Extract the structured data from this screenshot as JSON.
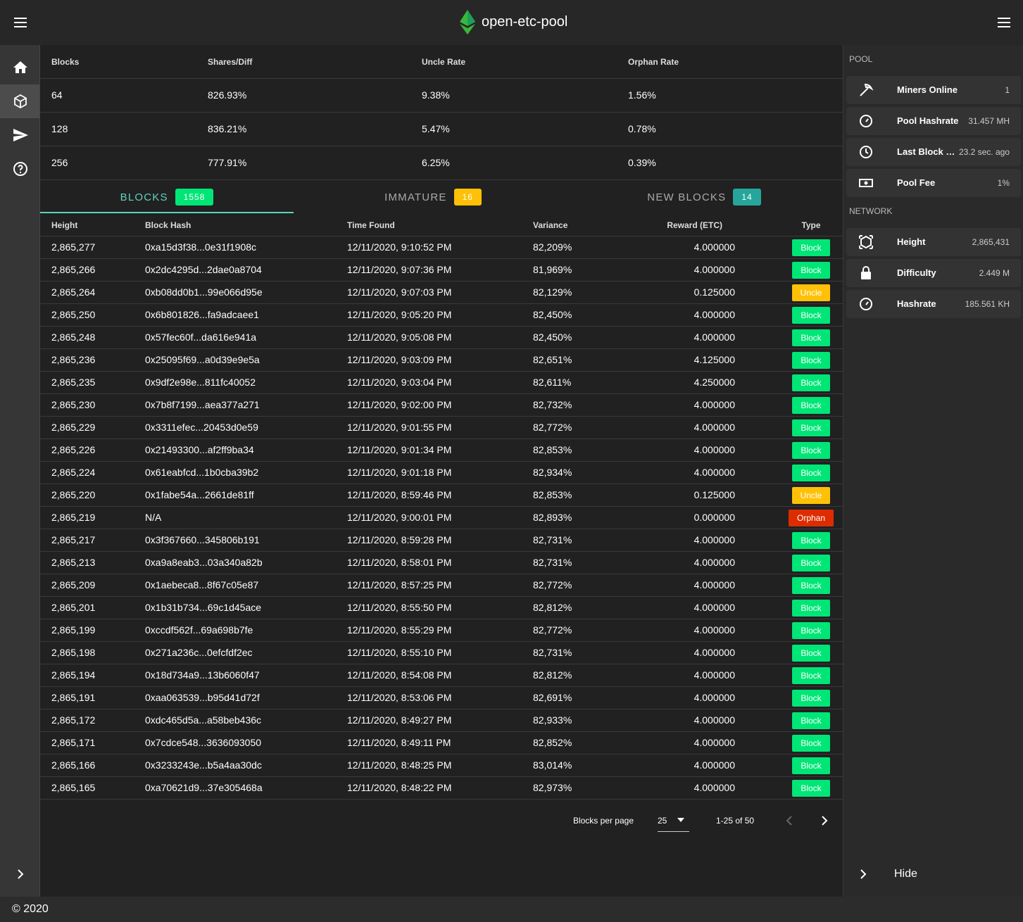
{
  "app_bar": {
    "title": "open-etc-pool"
  },
  "stats": {
    "headers": [
      "Blocks",
      "Shares/Diff",
      "Uncle Rate",
      "Orphan Rate"
    ],
    "rows": [
      [
        "64",
        "826.93%",
        "9.38%",
        "1.56%"
      ],
      [
        "128",
        "836.21%",
        "5.47%",
        "0.78%"
      ],
      [
        "256",
        "777.91%",
        "6.25%",
        "0.39%"
      ]
    ]
  },
  "tabs": [
    {
      "label": "BLOCKS",
      "count": 1558,
      "color": "#00e676"
    },
    {
      "label": "IMMATURE",
      "count": 16,
      "color": "#ffc107"
    },
    {
      "label": "NEW BLOCKS",
      "count": 14,
      "color": "#26a69a"
    }
  ],
  "blocks_table": {
    "headers": [
      "Height",
      "Block Hash",
      "Time Found",
      "Variance",
      "Reward (ETC)",
      "Type"
    ],
    "rows": [
      [
        "2,865,277",
        "0xa15d3f38...0e31f1908c",
        "12/11/2020, 9:10:52 PM",
        "82,209%",
        "4.000000",
        {
          "text": "Block",
          "color": "#00e676"
        }
      ],
      [
        "2,865,266",
        "0x2dc4295d...2dae0a8704",
        "12/11/2020, 9:07:36 PM",
        "81,969%",
        "4.000000",
        {
          "text": "Block",
          "color": "#00e676"
        }
      ],
      [
        "2,865,264",
        "0xb08dd0b1...99e066d95e",
        "12/11/2020, 9:07:03 PM",
        "82,129%",
        "0.125000",
        {
          "text": "Uncle",
          "color": "#ffc107"
        }
      ],
      [
        "2,865,250",
        "0x6b801826...fa9adcaee1",
        "12/11/2020, 9:05:20 PM",
        "82,450%",
        "4.000000",
        {
          "text": "Block",
          "color": "#00e676"
        }
      ],
      [
        "2,865,248",
        "0x57fec60f...da616e941a",
        "12/11/2020, 9:05:08 PM",
        "82,450%",
        "4.000000",
        {
          "text": "Block",
          "color": "#00e676"
        }
      ],
      [
        "2,865,236",
        "0x25095f69...a0d39e9e5a",
        "12/11/2020, 9:03:09 PM",
        "82,651%",
        "4.125000",
        {
          "text": "Block",
          "color": "#00e676"
        }
      ],
      [
        "2,865,235",
        "0x9df2e98e...811fc40052",
        "12/11/2020, 9:03:04 PM",
        "82,611%",
        "4.250000",
        {
          "text": "Block",
          "color": "#00e676"
        }
      ],
      [
        "2,865,230",
        "0x7b8f7199...aea377a271",
        "12/11/2020, 9:02:00 PM",
        "82,732%",
        "4.000000",
        {
          "text": "Block",
          "color": "#00e676"
        }
      ],
      [
        "2,865,229",
        "0x3311efec...20453d0e59",
        "12/11/2020, 9:01:55 PM",
        "82,772%",
        "4.000000",
        {
          "text": "Block",
          "color": "#00e676"
        }
      ],
      [
        "2,865,226",
        "0x21493300...af2ff9ba34",
        "12/11/2020, 9:01:34 PM",
        "82,853%",
        "4.000000",
        {
          "text": "Block",
          "color": "#00e676"
        }
      ],
      [
        "2,865,224",
        "0x61eabfcd...1b0cba39b2",
        "12/11/2020, 9:01:18 PM",
        "82,934%",
        "4.000000",
        {
          "text": "Block",
          "color": "#00e676"
        }
      ],
      [
        "2,865,220",
        "0x1fabe54a...2661de81ff",
        "12/11/2020, 8:59:46 PM",
        "82,853%",
        "0.125000",
        {
          "text": "Uncle",
          "color": "#ffc107"
        }
      ],
      [
        "2,865,219",
        "N/A",
        "12/11/2020, 9:00:01 PM",
        "82,893%",
        "0.000000",
        {
          "text": "Orphan",
          "color": "#dd2c00"
        }
      ],
      [
        "2,865,217",
        "0x3f367660...345806b191",
        "12/11/2020, 8:59:28 PM",
        "82,731%",
        "4.000000",
        {
          "text": "Block",
          "color": "#00e676"
        }
      ],
      [
        "2,865,213",
        "0xa9a8eab3...03a340a82b",
        "12/11/2020, 8:58:01 PM",
        "82,731%",
        "4.000000",
        {
          "text": "Block",
          "color": "#00e676"
        }
      ],
      [
        "2,865,209",
        "0x1aebeca8...8f67c05e87",
        "12/11/2020, 8:57:25 PM",
        "82,772%",
        "4.000000",
        {
          "text": "Block",
          "color": "#00e676"
        }
      ],
      [
        "2,865,201",
        "0x1b31b734...69c1d45ace",
        "12/11/2020, 8:55:50 PM",
        "82,812%",
        "4.000000",
        {
          "text": "Block",
          "color": "#00e676"
        }
      ],
      [
        "2,865,199",
        "0xccdf562f...69a698b7fe",
        "12/11/2020, 8:55:29 PM",
        "82,772%",
        "4.000000",
        {
          "text": "Block",
          "color": "#00e676"
        }
      ],
      [
        "2,865,198",
        "0x271a236c...0efcfdf2ec",
        "12/11/2020, 8:55:10 PM",
        "82,731%",
        "4.000000",
        {
          "text": "Block",
          "color": "#00e676"
        }
      ],
      [
        "2,865,194",
        "0x18d734a9...13b6060f47",
        "12/11/2020, 8:54:08 PM",
        "82,812%",
        "4.000000",
        {
          "text": "Block",
          "color": "#00e676"
        }
      ],
      [
        "2,865,191",
        "0xaa063539...b95d41d72f",
        "12/11/2020, 8:53:06 PM",
        "82,691%",
        "4.000000",
        {
          "text": "Block",
          "color": "#00e676"
        }
      ],
      [
        "2,865,172",
        "0xdc465d5a...a58beb436c",
        "12/11/2020, 8:49:27 PM",
        "82,933%",
        "4.000000",
        {
          "text": "Block",
          "color": "#00e676"
        }
      ],
      [
        "2,865,171",
        "0x7cdce548...3636093050",
        "12/11/2020, 8:49:11 PM",
        "82,852%",
        "4.000000",
        {
          "text": "Block",
          "color": "#00e676"
        }
      ],
      [
        "2,865,166",
        "0x3233243e...b5a4aa30dc",
        "12/11/2020, 8:48:25 PM",
        "83,014%",
        "4.000000",
        {
          "text": "Block",
          "color": "#00e676"
        }
      ],
      [
        "2,865,165",
        "0xa70621d9...37e305468a",
        "12/11/2020, 8:48:22 PM",
        "82,973%",
        "4.000000",
        {
          "text": "Block",
          "color": "#00e676"
        }
      ]
    ]
  },
  "pagination": {
    "label": "Blocks per page",
    "per_page": 25,
    "range": "1-25 of 50"
  },
  "sidebar": {
    "sections": [
      {
        "heading": "POOL",
        "items": [
          {
            "label": "Miners Online",
            "value": "1"
          },
          {
            "label": "Pool Hashrate",
            "value": "31.457 MH"
          },
          {
            "label": "Last Block Fo…",
            "value": "23.2 sec. ago"
          },
          {
            "label": "Pool Fee",
            "value": "1%"
          }
        ]
      },
      {
        "heading": "NETWORK",
        "items": [
          {
            "label": "Height",
            "value": "2,865,431"
          },
          {
            "label": "Difficulty",
            "value": "2.449 M"
          },
          {
            "label": "Hashrate",
            "value": "185.561 KH"
          }
        ]
      }
    ],
    "hide": "Hide"
  },
  "footer": {
    "text": "© 2020"
  }
}
